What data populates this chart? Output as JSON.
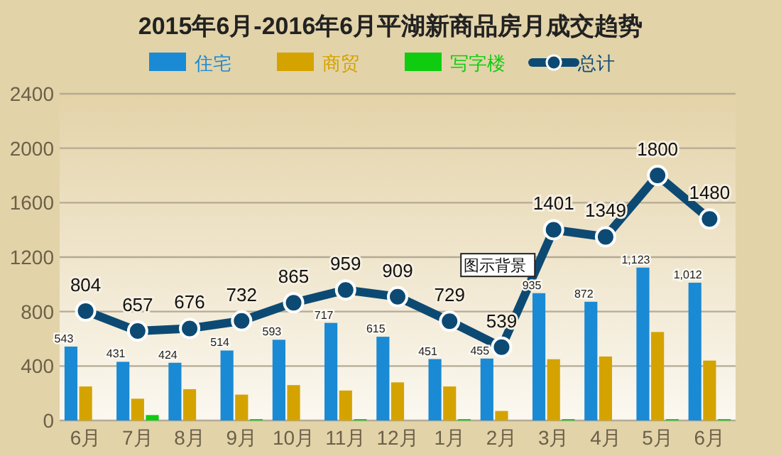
{
  "chart_data": {
    "type": "bar",
    "title": "2015年6月-2016年6月平湖新商品房月成交趋势",
    "categories": [
      "6月",
      "7月",
      "8月",
      "9月",
      "10月",
      "11月",
      "12月",
      "1月",
      "2月",
      "3月",
      "4月",
      "5月",
      "6月"
    ],
    "series": [
      {
        "name": "住宅",
        "color": "#1a8ad4",
        "values": [
          543,
          431,
          424,
          514,
          593,
          717,
          615,
          451,
          455,
          935,
          872,
          1123,
          1012
        ],
        "value_labels": [
          "543",
          "431",
          "424",
          "514",
          "593",
          "717",
          "615",
          "451",
          "455",
          "935",
          "872",
          "1,123",
          "1,012"
        ]
      },
      {
        "name": "商贸",
        "color": "#d4a300",
        "values": [
          250,
          160,
          230,
          190,
          260,
          220,
          280,
          250,
          70,
          450,
          470,
          650,
          440
        ]
      },
      {
        "name": "写字楼",
        "color": "#10cc10",
        "values": [
          0,
          40,
          0,
          10,
          0,
          10,
          0,
          10,
          0,
          10,
          0,
          10,
          10
        ]
      },
      {
        "name": "总计",
        "type": "line",
        "color": "#0d4a73",
        "marker": "circle",
        "values": [
          804,
          657,
          676,
          732,
          865,
          959,
          909,
          729,
          539,
          1401,
          1349,
          1800,
          1480
        ],
        "value_labels": [
          "804",
          "657",
          "676",
          "732",
          "865",
          "959",
          "909",
          "729",
          "539",
          "1401",
          "1349",
          "1800",
          "1480"
        ]
      }
    ],
    "ylim": [
      0,
      2400
    ],
    "yticks": [
      0,
      400,
      800,
      1200,
      1600,
      2000,
      2400
    ],
    "grid": "y",
    "legend": "top",
    "annotations": [
      "图示背景"
    ]
  }
}
